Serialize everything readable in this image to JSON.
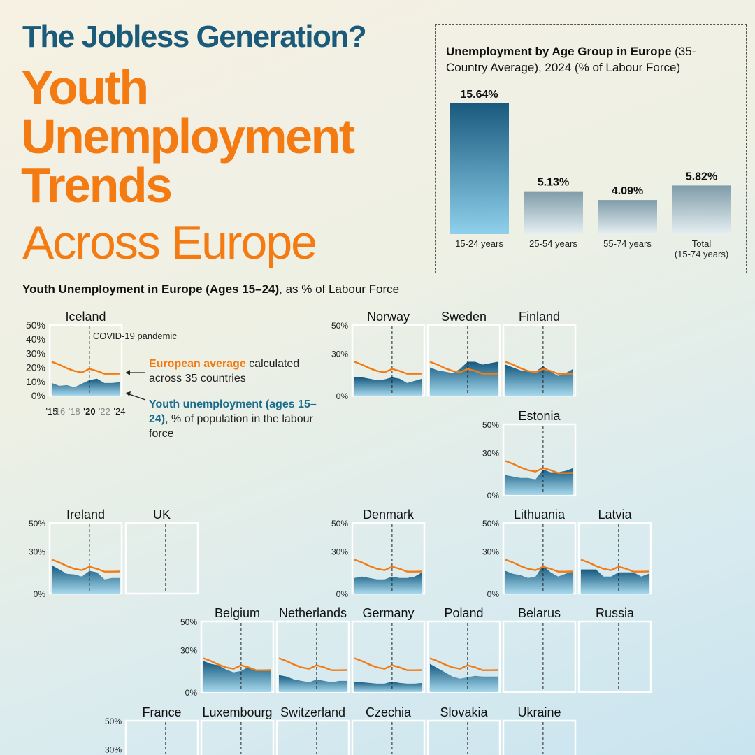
{
  "header": {
    "kicker": "The Jobless Generation?",
    "title_line1": "Youth",
    "title_line2": "Unemployment",
    "title_line3": "Trends",
    "title_line4": "Across Europe"
  },
  "age_chart": {
    "title_bold": "Unemployment by Age Group in Europe",
    "title_rest": " (35-Country Average), 2024 (% of Labour Force)"
  },
  "section": {
    "title_bold": "Youth Unemployment in Europe (Ages 15–24)",
    "title_rest": ", as % of Labour Force"
  },
  "legend": {
    "avg_bold": "European average",
    "avg_rest": " calculated across 35 countries",
    "youth_bold": "Youth unemployment (ages 15–24)",
    "youth_rest": ", % of population in the labour force",
    "covid": "COVID-19 pandemic"
  },
  "colors": {
    "orange": "#f47a12",
    "navy": "#1a5a7a",
    "area_dark": "#1a5e82",
    "area_light": "#9ccfe4"
  },
  "chart_data": [
    {
      "type": "bar",
      "title": "Unemployment by Age Group in Europe (35-Country Average), 2024 (% of Labour Force)",
      "categories": [
        "15-24 years",
        "25-54 years",
        "55-74 years",
        "Total (15-74 years)"
      ],
      "values": [
        15.64,
        5.13,
        4.09,
        5.82
      ],
      "value_labels": [
        "15.64%",
        "5.13%",
        "4.09%",
        "5.82%"
      ],
      "unit": "%"
    },
    {
      "type": "area",
      "title": "Youth Unemployment in Europe (Ages 15–24), as % of Labour Force",
      "x": [
        2015,
        2016,
        2017,
        2018,
        2019,
        2020,
        2021,
        2022,
        2023,
        2024
      ],
      "x_tick_labels": [
        "'15",
        "'16",
        "'18",
        "'20",
        "'22",
        "'24"
      ],
      "y_ticks_full": [
        "50%",
        "40%",
        "30%",
        "20%",
        "10%",
        "0%"
      ],
      "y_ticks": [
        "50%",
        "30%",
        "0%"
      ],
      "ylim": [
        0,
        50
      ],
      "annotation": {
        "x": 2020,
        "label": "COVID-19 pandemic"
      },
      "european_average": [
        24,
        22,
        19.5,
        17.5,
        16.5,
        19,
        17.5,
        15.5,
        15.5,
        15.6
      ],
      "countries": [
        {
          "name": "Iceland",
          "values": [
            9,
            7,
            7.5,
            6,
            8.5,
            11,
            12,
            9,
            9,
            9.5
          ]
        },
        {
          "name": "Norway",
          "values": [
            13,
            13,
            12,
            11,
            11.5,
            13,
            12,
            9,
            10.5,
            12
          ]
        },
        {
          "name": "Sweden",
          "values": [
            20,
            18,
            17,
            16,
            19,
            24,
            24,
            22,
            23,
            24
          ]
        },
        {
          "name": "Finland",
          "values": [
            22,
            20,
            18,
            17,
            17,
            21,
            17,
            14,
            16,
            19
          ]
        },
        {
          "name": "Estonia",
          "values": [
            14,
            13,
            12,
            12,
            11,
            18,
            16,
            16,
            17,
            19
          ]
        },
        {
          "name": "Ireland",
          "values": [
            20,
            17,
            14,
            13.5,
            12,
            16,
            15,
            10,
            11,
            11
          ]
        },
        {
          "name": "UK",
          "values": []
        },
        {
          "name": "Denmark",
          "values": [
            11,
            12,
            11,
            10,
            10,
            12,
            11,
            11,
            12,
            15
          ]
        },
        {
          "name": "Lithuania",
          "values": [
            16,
            14,
            13,
            11,
            12,
            20,
            15,
            12,
            14,
            16
          ]
        },
        {
          "name": "Latvia",
          "values": [
            17,
            17,
            17,
            12,
            12,
            15,
            15,
            15,
            12,
            14
          ]
        },
        {
          "name": "Belgium",
          "values": [
            22,
            20,
            19,
            16,
            14,
            15,
            18,
            16,
            16,
            16
          ]
        },
        {
          "name": "Netherlands",
          "values": [
            12,
            11,
            9,
            8,
            7,
            9,
            8,
            7,
            8,
            8
          ]
        },
        {
          "name": "Germany",
          "values": [
            7,
            7,
            6.5,
            6,
            6,
            7.5,
            6.5,
            6,
            6,
            6.5
          ]
        },
        {
          "name": "Poland",
          "values": [
            20,
            17,
            14,
            11,
            9.5,
            10.5,
            11.5,
            11,
            11,
            11
          ]
        },
        {
          "name": "Belarus",
          "values": []
        },
        {
          "name": "Russia",
          "values": []
        },
        {
          "name": "France",
          "values": []
        },
        {
          "name": "Luxembourg",
          "values": []
        },
        {
          "name": "Switzerland",
          "values": []
        },
        {
          "name": "Czechia",
          "values": []
        },
        {
          "name": "Slovakia",
          "values": []
        },
        {
          "name": "Ukraine",
          "values": []
        }
      ]
    }
  ]
}
